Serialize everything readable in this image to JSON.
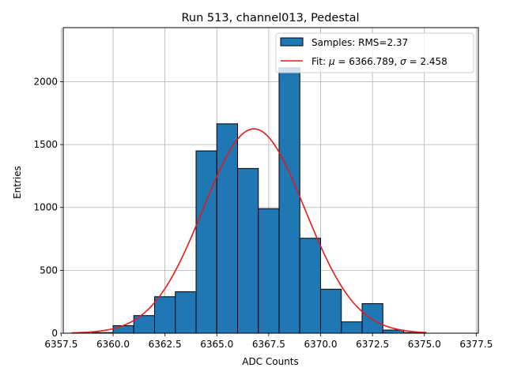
{
  "chart_data": {
    "type": "bar",
    "title": "Run 513, channel013, Pedestal",
    "xlabel": "ADC Counts",
    "ylabel": "Entries",
    "xlim": [
      6357.6,
      6377.6
    ],
    "ylim": [
      0,
      2430
    ],
    "xticks": [
      6357.5,
      6360.0,
      6362.5,
      6365.0,
      6367.5,
      6370.0,
      6372.5,
      6375.0,
      6377.5
    ],
    "xtick_labels": [
      "6357.5",
      "6360.0",
      "6362.5",
      "6365.0",
      "6367.5",
      "6370.0",
      "6372.5",
      "6375.0",
      "6377.5"
    ],
    "yticks": [
      0,
      500,
      1000,
      1500,
      2000
    ],
    "ytick_labels": [
      "0",
      "500",
      "1000",
      "1500",
      "2000"
    ],
    "grid": true,
    "legend_position": "top-right",
    "histogram": {
      "name": "Samples: RMS=2.37",
      "color": "#1f77b4",
      "edge_color": "#000000",
      "bins": [
        {
          "left": 6359.0,
          "right": 6360.0,
          "count": 5
        },
        {
          "left": 6360.0,
          "right": 6361.0,
          "count": 60
        },
        {
          "left": 6361.0,
          "right": 6362.0,
          "count": 140
        },
        {
          "left": 6362.0,
          "right": 6363.0,
          "count": 290
        },
        {
          "left": 6363.0,
          "right": 6364.0,
          "count": 330
        },
        {
          "left": 6364.0,
          "right": 6365.0,
          "count": 1450
        },
        {
          "left": 6365.0,
          "right": 6366.0,
          "count": 1665
        },
        {
          "left": 6366.0,
          "right": 6367.0,
          "count": 1310
        },
        {
          "left": 6367.0,
          "right": 6368.0,
          "count": 990
        },
        {
          "left": 6368.0,
          "right": 6369.0,
          "count": 2110
        },
        {
          "left": 6369.0,
          "right": 6370.0,
          "count": 755
        },
        {
          "left": 6370.0,
          "right": 6371.0,
          "count": 350
        },
        {
          "left": 6371.0,
          "right": 6372.0,
          "count": 90
        },
        {
          "left": 6372.0,
          "right": 6373.0,
          "count": 235
        },
        {
          "left": 6373.0,
          "right": 6374.0,
          "count": 25
        },
        {
          "left": 6374.0,
          "right": 6375.0,
          "count": 5
        }
      ]
    },
    "fit": {
      "name_prefix": "Fit: ",
      "mu_symbol": "μ",
      "sigma_symbol": "σ",
      "mu_text": " = 6366.789, ",
      "sigma_text": " = 2.458",
      "mu": 6366.789,
      "sigma": 2.458,
      "amplitude": 1625,
      "x_range": [
        6358.0,
        6375.1
      ],
      "color": "#e41a1c"
    }
  }
}
